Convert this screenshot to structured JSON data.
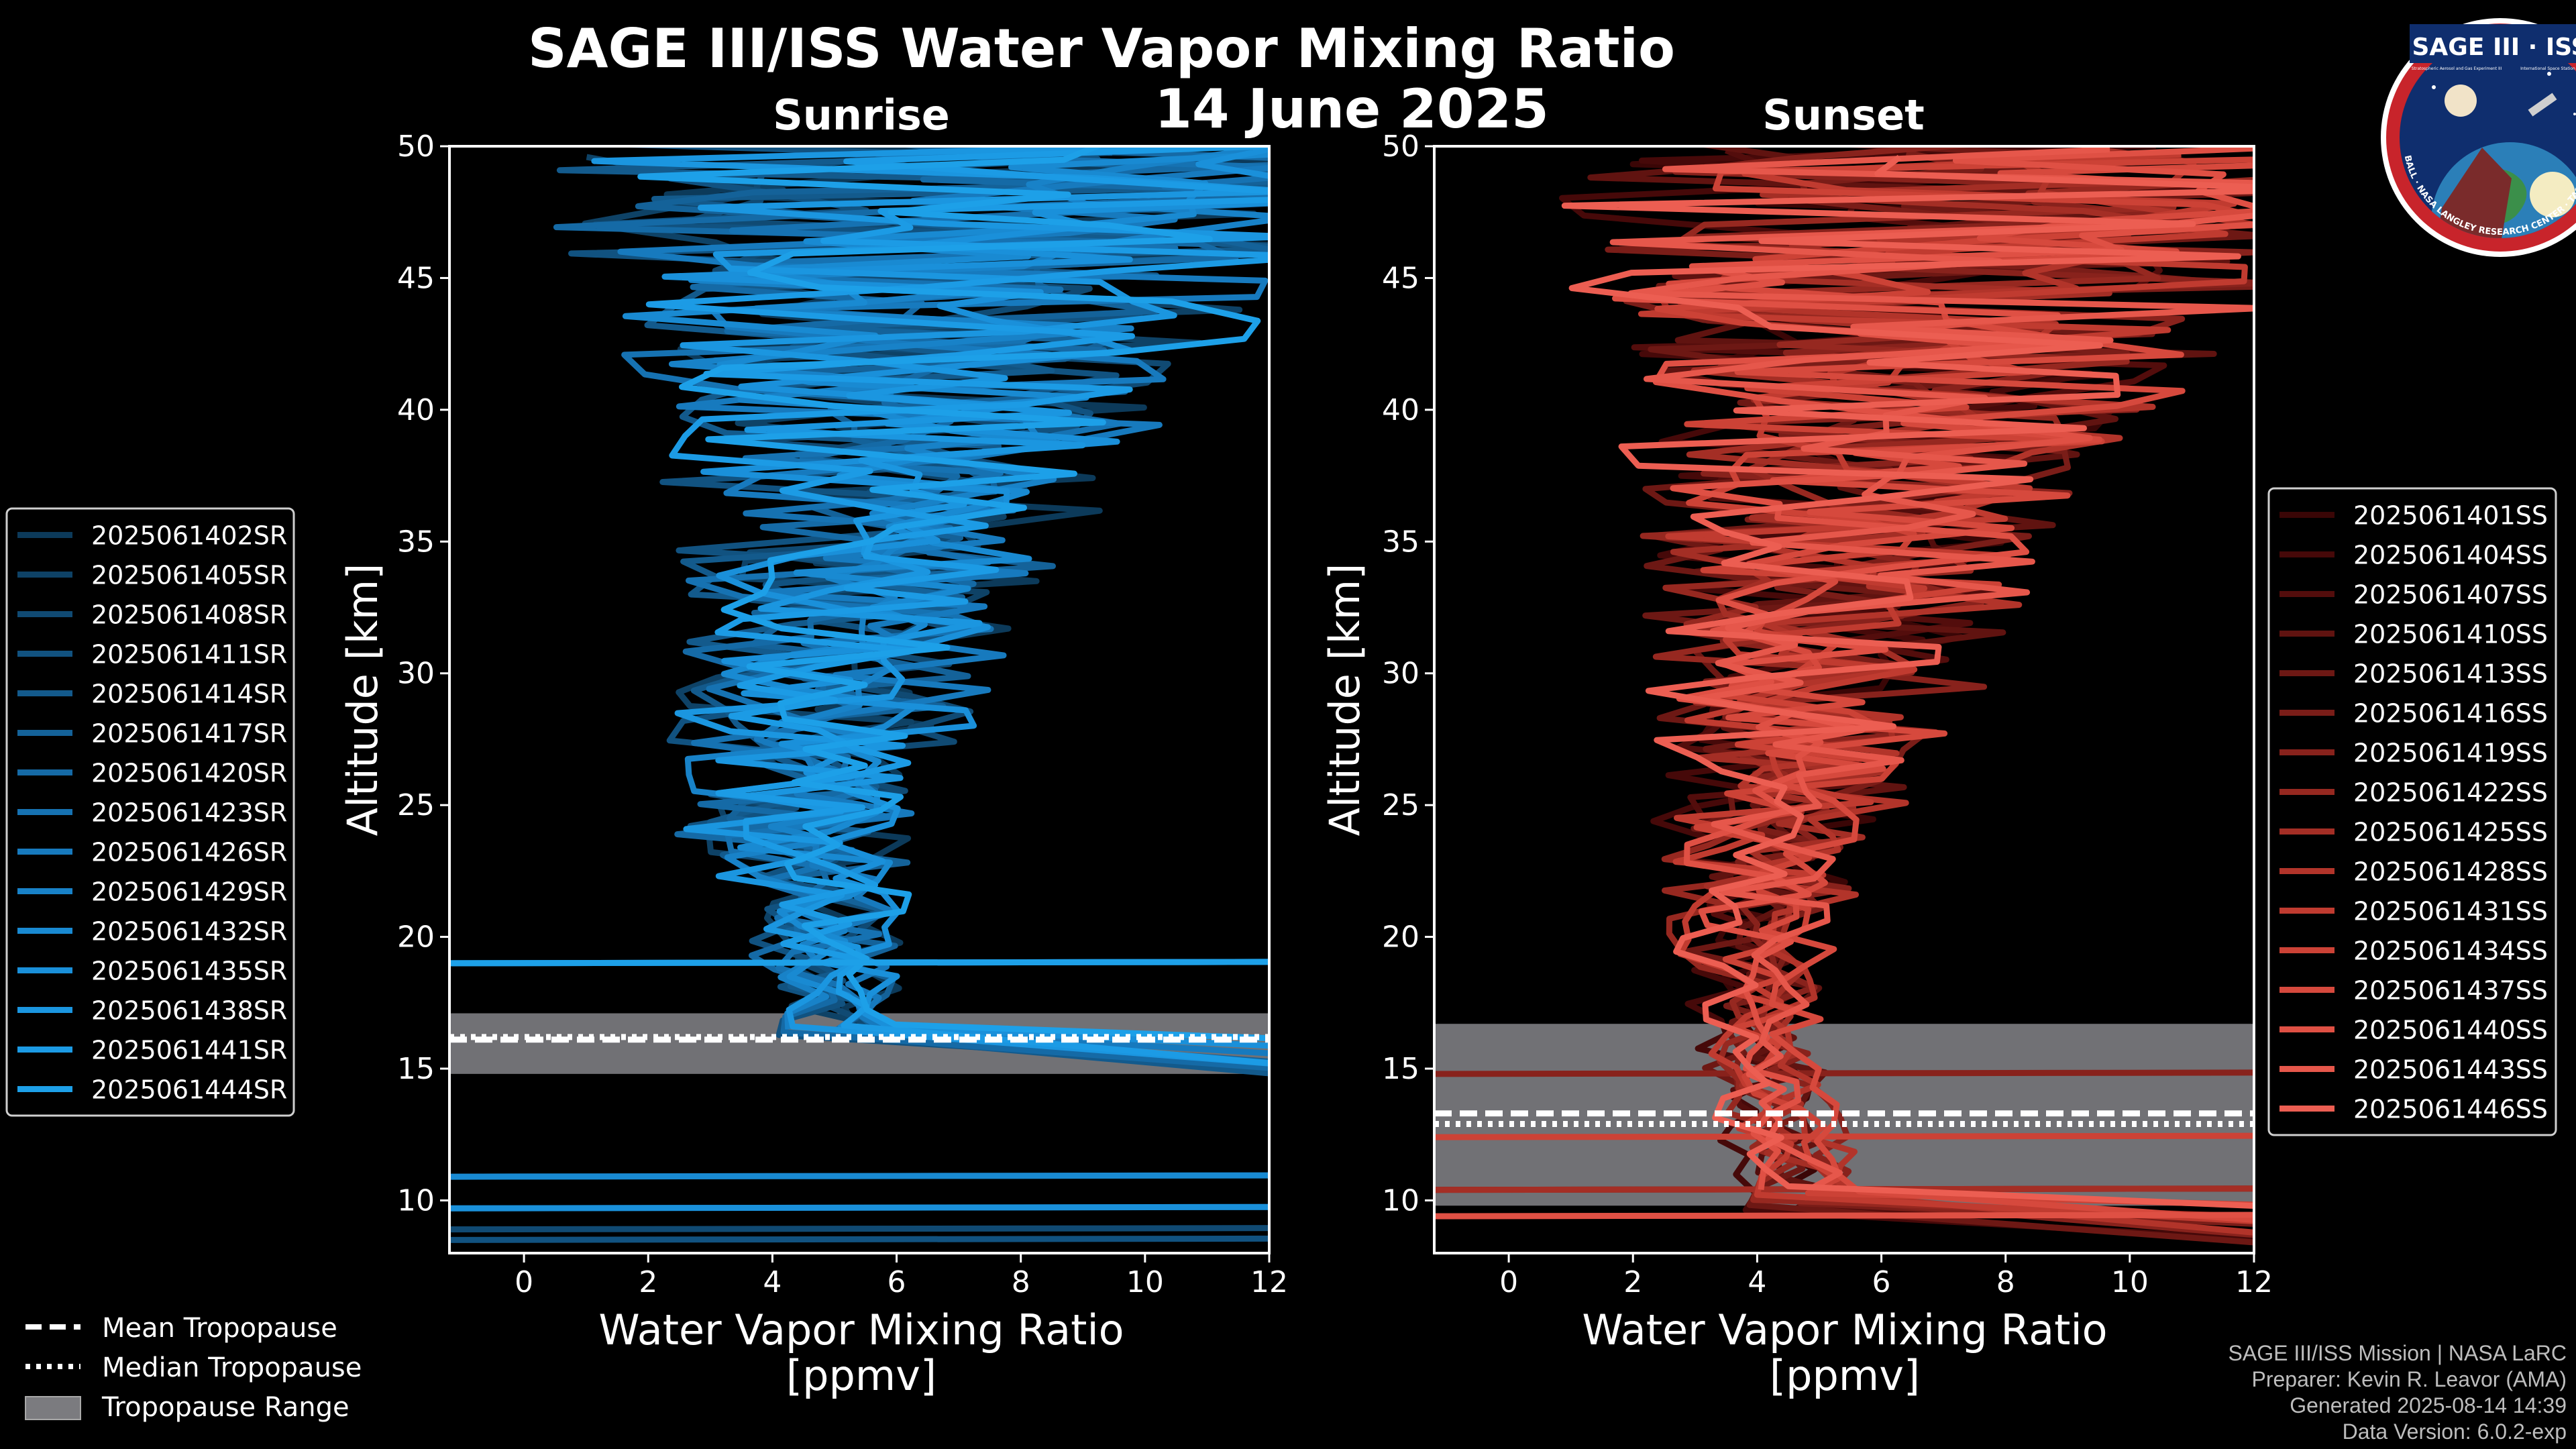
{
  "header": {
    "title": "SAGE III/ISS Water Vapor Mixing Ratio",
    "date": "14 June 2025"
  },
  "logo": {
    "top_text": "SAGE III · ISS",
    "sub_text_left": "Stratospheric Aerosol and Gas Experiment III",
    "sub_text_right": "International Space Station",
    "ring_text": "BALL · NASA LANGLEY RESEARCH CENTER · TAS-I · ESA"
  },
  "legend_common": {
    "items": [
      {
        "label": "Mean Tropopause",
        "style": "dashed"
      },
      {
        "label": "Median Tropopause",
        "style": "dotted"
      },
      {
        "label": "Tropopause Range",
        "style": "patch"
      }
    ]
  },
  "footer": {
    "line1": "SAGE III/ISS Mission | NASA LaRC",
    "line2": "Preparer: Kevin R. Leavor (AMA)",
    "line3": "Generated 2025-08-14 14:39",
    "line4": "Data Version: 6.0.2-exp"
  },
  "chart_data": [
    {
      "type": "line",
      "panel": "sunrise",
      "title": "Sunrise",
      "xlabel": "Water Vapor Mixing Ratio",
      "xlabel_units": "[ppmv]",
      "ylabel": "Altitude [km]",
      "xlim": [
        -1.2,
        12
      ],
      "ylim": [
        8,
        50
      ],
      "xticks": [
        0,
        2,
        4,
        6,
        8,
        10,
        12
      ],
      "yticks": [
        10,
        15,
        20,
        25,
        30,
        35,
        40,
        45,
        50
      ],
      "grid": false,
      "legend_position": "left",
      "tropopause": {
        "mean": 16.1,
        "median": 16.2,
        "range": [
          14.8,
          17.1
        ]
      },
      "profile_shape": {
        "mean_at_16km": 5.2,
        "min_at_24km": 4.4,
        "mean_at_35km": 5.6,
        "mean_above_40km": 6.5
      },
      "series": [
        {
          "name": "2025061402SR",
          "color": "#0c3a5a"
        },
        {
          "name": "2025061405SR",
          "color": "#0e4266"
        },
        {
          "name": "2025061408SR",
          "color": "#104a73"
        },
        {
          "name": "2025061411SR",
          "color": "#115280"
        },
        {
          "name": "2025061414SR",
          "color": "#135a8c"
        },
        {
          "name": "2025061417SR",
          "color": "#146299"
        },
        {
          "name": "2025061420SR",
          "color": "#156aa6"
        },
        {
          "name": "2025061423SR",
          "color": "#1672b2"
        },
        {
          "name": "2025061426SR",
          "color": "#177abe"
        },
        {
          "name": "2025061429SR",
          "color": "#1882c8"
        },
        {
          "name": "2025061432SR",
          "color": "#198ad2"
        },
        {
          "name": "2025061435SR",
          "color": "#1a90da"
        },
        {
          "name": "2025061438SR",
          "color": "#1b96e0"
        },
        {
          "name": "2025061441SR",
          "color": "#1c9be5"
        },
        {
          "name": "2025061444SR",
          "color": "#1da0e8"
        }
      ]
    },
    {
      "type": "line",
      "panel": "sunset",
      "title": "Sunset",
      "xlabel": "Water Vapor Mixing Ratio",
      "xlabel_units": "[ppmv]",
      "ylabel": "Altitude [km]",
      "xlim": [
        -1.2,
        12
      ],
      "ylim": [
        8,
        50
      ],
      "xticks": [
        0,
        2,
        4,
        6,
        8,
        10,
        12
      ],
      "yticks": [
        10,
        15,
        20,
        25,
        30,
        35,
        40,
        45,
        50
      ],
      "grid": false,
      "legend_position": "right",
      "tropopause": {
        "mean": 13.3,
        "median": 12.9,
        "range": [
          9.8,
          16.7
        ]
      },
      "profile_shape": {
        "mean_at_16km": 4.2,
        "min_at_20km": 3.9,
        "mean_at_35km": 5.5,
        "mean_above_40km": 6.8
      },
      "series": [
        {
          "name": "2025061401SS",
          "color": "#3a0606"
        },
        {
          "name": "2025061404SS",
          "color": "#460909"
        },
        {
          "name": "2025061407SS",
          "color": "#530d0c"
        },
        {
          "name": "2025061410SS",
          "color": "#601310"
        },
        {
          "name": "2025061413SS",
          "color": "#6d1814"
        },
        {
          "name": "2025061416SS",
          "color": "#7a1d18"
        },
        {
          "name": "2025061419SS",
          "color": "#88221c"
        },
        {
          "name": "2025061422SS",
          "color": "#962820"
        },
        {
          "name": "2025061425SS",
          "color": "#a42e25"
        },
        {
          "name": "2025061428SS",
          "color": "#b2342a"
        },
        {
          "name": "2025061431SS",
          "color": "#c03b30"
        },
        {
          "name": "2025061434SS",
          "color": "#cc4236"
        },
        {
          "name": "2025061437SS",
          "color": "#d6493d"
        },
        {
          "name": "2025061440SS",
          "color": "#df5044"
        },
        {
          "name": "2025061443SS",
          "color": "#e6574b"
        },
        {
          "name": "2025061446SS",
          "color": "#ec5e52"
        }
      ]
    }
  ]
}
